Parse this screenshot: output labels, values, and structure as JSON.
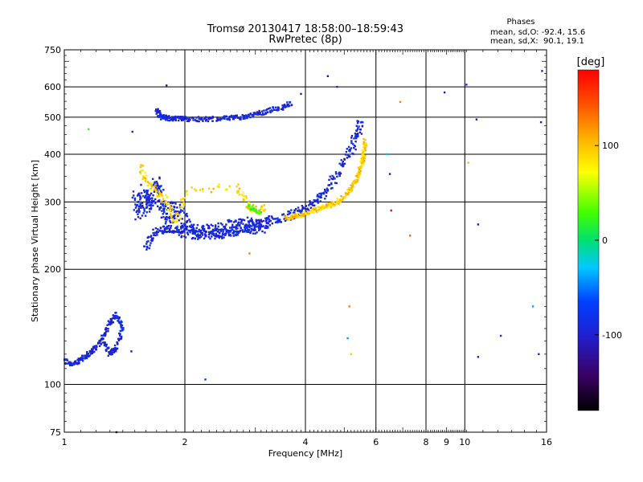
{
  "chart_data": {
    "type": "scatter",
    "title": "Tromsø 20130417 18:58:00–18:59:43",
    "subtitle": "RwPretec (8p)",
    "xlabel": "Frequency [MHz]",
    "ylabel": "Stationary phase Virtual Height [km]",
    "xscale": "log",
    "yscale": "log",
    "xlim": [
      1,
      16
    ],
    "ylim": [
      75,
      750
    ],
    "x_ticks": [
      1,
      2,
      4,
      6,
      8,
      9,
      10,
      16
    ],
    "y_ticks": [
      75,
      100,
      200,
      300,
      400,
      500,
      600,
      750
    ],
    "grid_x": [
      2,
      4,
      6,
      8,
      10
    ],
    "grid_y": [
      100,
      200,
      300,
      400,
      500,
      600
    ],
    "grid": true,
    "stats": {
      "heading": "Phases",
      "line_o": "mean, sd,O: -92.4, 15.6",
      "line_x": "mean, sd,X:  90.1, 19.1"
    },
    "colorbar": {
      "label": "[deg]",
      "min": -180,
      "max": 180,
      "ticks": [
        100,
        0,
        -100
      ],
      "palette": "rainbow (black-purple-blue-cyan-green-yellow-orange-red)"
    },
    "series": [
      {
        "name": "O-mode",
        "phase_mean": -92.4,
        "phase_sd": 15.6
      },
      {
        "name": "X-mode",
        "phase_mean": 90.1,
        "phase_sd": 19.1
      }
    ],
    "traces": [
      {
        "phase": -92,
        "spread": 0.02,
        "n": 4,
        "points": [
          [
            1.0,
            115
          ],
          [
            1.05,
            113
          ],
          [
            1.1,
            116
          ],
          [
            1.15,
            120
          ],
          [
            1.2,
            125
          ],
          [
            1.25,
            133
          ],
          [
            1.3,
            145
          ],
          [
            1.35,
            152
          ],
          [
            1.4,
            140
          ],
          [
            1.35,
            125
          ],
          [
            1.3,
            120
          ],
          [
            1.25,
            130
          ]
        ]
      },
      {
        "phase": -92,
        "spread": 0.04,
        "n": 4,
        "points": [
          [
            1.6,
            230
          ],
          [
            1.7,
            250
          ],
          [
            1.8,
            255
          ],
          [
            1.9,
            252
          ],
          [
            2.0,
            248
          ],
          [
            2.2,
            246
          ],
          [
            2.4,
            247
          ],
          [
            2.6,
            250
          ],
          [
            2.8,
            255
          ],
          [
            3.0,
            260
          ],
          [
            3.2,
            266
          ],
          [
            3.5,
            272
          ],
          [
            3.8,
            280
          ],
          [
            4.0,
            288
          ],
          [
            4.3,
            305
          ],
          [
            4.6,
            330
          ],
          [
            4.9,
            365
          ],
          [
            5.2,
            410
          ],
          [
            5.4,
            450
          ],
          [
            5.5,
            490
          ]
        ]
      },
      {
        "phase": -92,
        "spread": 0.06,
        "n": 5,
        "points": [
          [
            1.52,
            310
          ],
          [
            1.55,
            280
          ],
          [
            1.6,
            320
          ],
          [
            1.65,
            290
          ],
          [
            1.7,
            340
          ],
          [
            1.75,
            300
          ],
          [
            1.8,
            270
          ],
          [
            1.9,
            290
          ],
          [
            2.0,
            265
          ],
          [
            2.1,
            255
          ],
          [
            2.2,
            250
          ],
          [
            2.4,
            252
          ],
          [
            2.6,
            258
          ],
          [
            2.8,
            262
          ],
          [
            3.0,
            258
          ],
          [
            3.2,
            262
          ]
        ]
      },
      {
        "phase": -92,
        "spread": 0.02,
        "n": 4,
        "points": [
          [
            1.7,
            520
          ],
          [
            1.75,
            500
          ],
          [
            1.8,
            497
          ],
          [
            1.9,
            495
          ],
          [
            2.0,
            495
          ],
          [
            2.2,
            494
          ],
          [
            2.4,
            495
          ],
          [
            2.6,
            497
          ],
          [
            2.8,
            500
          ],
          [
            3.0,
            508
          ],
          [
            3.2,
            518
          ],
          [
            3.5,
            530
          ],
          [
            3.7,
            545
          ]
        ]
      },
      {
        "phase": 95,
        "spread": 0.02,
        "n": 5,
        "points": [
          [
            3.6,
            272
          ],
          [
            3.9,
            278
          ],
          [
            4.2,
            285
          ],
          [
            4.5,
            292
          ],
          [
            4.8,
            300
          ],
          [
            5.1,
            315
          ],
          [
            5.35,
            340
          ],
          [
            5.5,
            370
          ],
          [
            5.6,
            400
          ],
          [
            5.65,
            440
          ]
        ]
      },
      {
        "phase": 90,
        "spread": 0.03,
        "n": 3,
        "points": [
          [
            1.55,
            370
          ],
          [
            1.6,
            340
          ],
          [
            1.7,
            320
          ],
          [
            1.8,
            300
          ],
          [
            1.9,
            265
          ],
          [
            2.0,
            320
          ],
          [
            2.7,
            330
          ],
          [
            2.85,
            295
          ],
          [
            3.0,
            285
          ],
          [
            3.2,
            290
          ]
        ]
      },
      {
        "phase": 30,
        "spread": 0.015,
        "n": 3,
        "points": [
          [
            2.9,
            292
          ],
          [
            3.0,
            285
          ],
          [
            3.1,
            280
          ]
        ]
      }
    ],
    "scatter_points": [
      {
        "x": 1.15,
        "y": 465,
        "phase": 40
      },
      {
        "x": 1.35,
        "y": 75,
        "phase": -100
      },
      {
        "x": 1.47,
        "y": 122,
        "phase": -100
      },
      {
        "x": 1.48,
        "y": 458,
        "phase": -100
      },
      {
        "x": 1.8,
        "y": 605,
        "phase": -100
      },
      {
        "x": 2.25,
        "y": 103,
        "phase": -100
      },
      {
        "x": 2.9,
        "y": 220,
        "phase": 110
      },
      {
        "x": 3.9,
        "y": 575,
        "phase": -100
      },
      {
        "x": 4.55,
        "y": 640,
        "phase": -100
      },
      {
        "x": 4.8,
        "y": 600,
        "phase": -100
      },
      {
        "x": 5.15,
        "y": 160,
        "phase": 140
      },
      {
        "x": 5.1,
        "y": 132,
        "phase": -30
      },
      {
        "x": 5.2,
        "y": 120,
        "phase": 110
      },
      {
        "x": 6.4,
        "y": 400,
        "phase": -20
      },
      {
        "x": 6.5,
        "y": 355,
        "phase": -100
      },
      {
        "x": 6.55,
        "y": 285,
        "phase": 160
      },
      {
        "x": 6.9,
        "y": 548,
        "phase": 130
      },
      {
        "x": 7.3,
        "y": 245,
        "phase": 150
      },
      {
        "x": 8.9,
        "y": 580,
        "phase": -100
      },
      {
        "x": 10.1,
        "y": 608,
        "phase": -100
      },
      {
        "x": 10.2,
        "y": 380,
        "phase": 110
      },
      {
        "x": 10.7,
        "y": 493,
        "phase": -100
      },
      {
        "x": 10.8,
        "y": 262,
        "phase": -100
      },
      {
        "x": 10.8,
        "y": 118,
        "phase": -100
      },
      {
        "x": 12.3,
        "y": 134,
        "phase": -100
      },
      {
        "x": 14.8,
        "y": 160,
        "phase": -30
      },
      {
        "x": 15.3,
        "y": 120,
        "phase": -100
      },
      {
        "x": 15.5,
        "y": 485,
        "phase": -100
      },
      {
        "x": 15.6,
        "y": 660,
        "phase": -100
      }
    ]
  }
}
